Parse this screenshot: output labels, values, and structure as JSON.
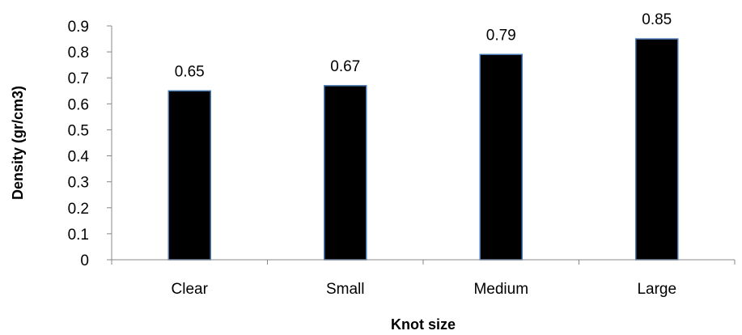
{
  "chart_data": {
    "type": "bar",
    "title": "",
    "xlabel": "Knot size",
    "ylabel": "Density (gr/cm3)",
    "categories": [
      "Clear",
      "Small",
      "Medium",
      "Large"
    ],
    "values": [
      0.65,
      0.67,
      0.79,
      0.85
    ],
    "data_labels": [
      "0.65",
      "0.67",
      "0.79",
      "0.85"
    ],
    "ylim": [
      0,
      0.9
    ],
    "yticks": [
      "0",
      "0.1",
      "0.2",
      "0.3",
      "0.4",
      "0.5",
      "0.6",
      "0.7",
      "0.8",
      "0.9"
    ],
    "grid": false,
    "legend": "none",
    "colors": {
      "bar_fill": "#000000",
      "bar_edge": "#4a7ab5",
      "axis": "#888888"
    }
  }
}
